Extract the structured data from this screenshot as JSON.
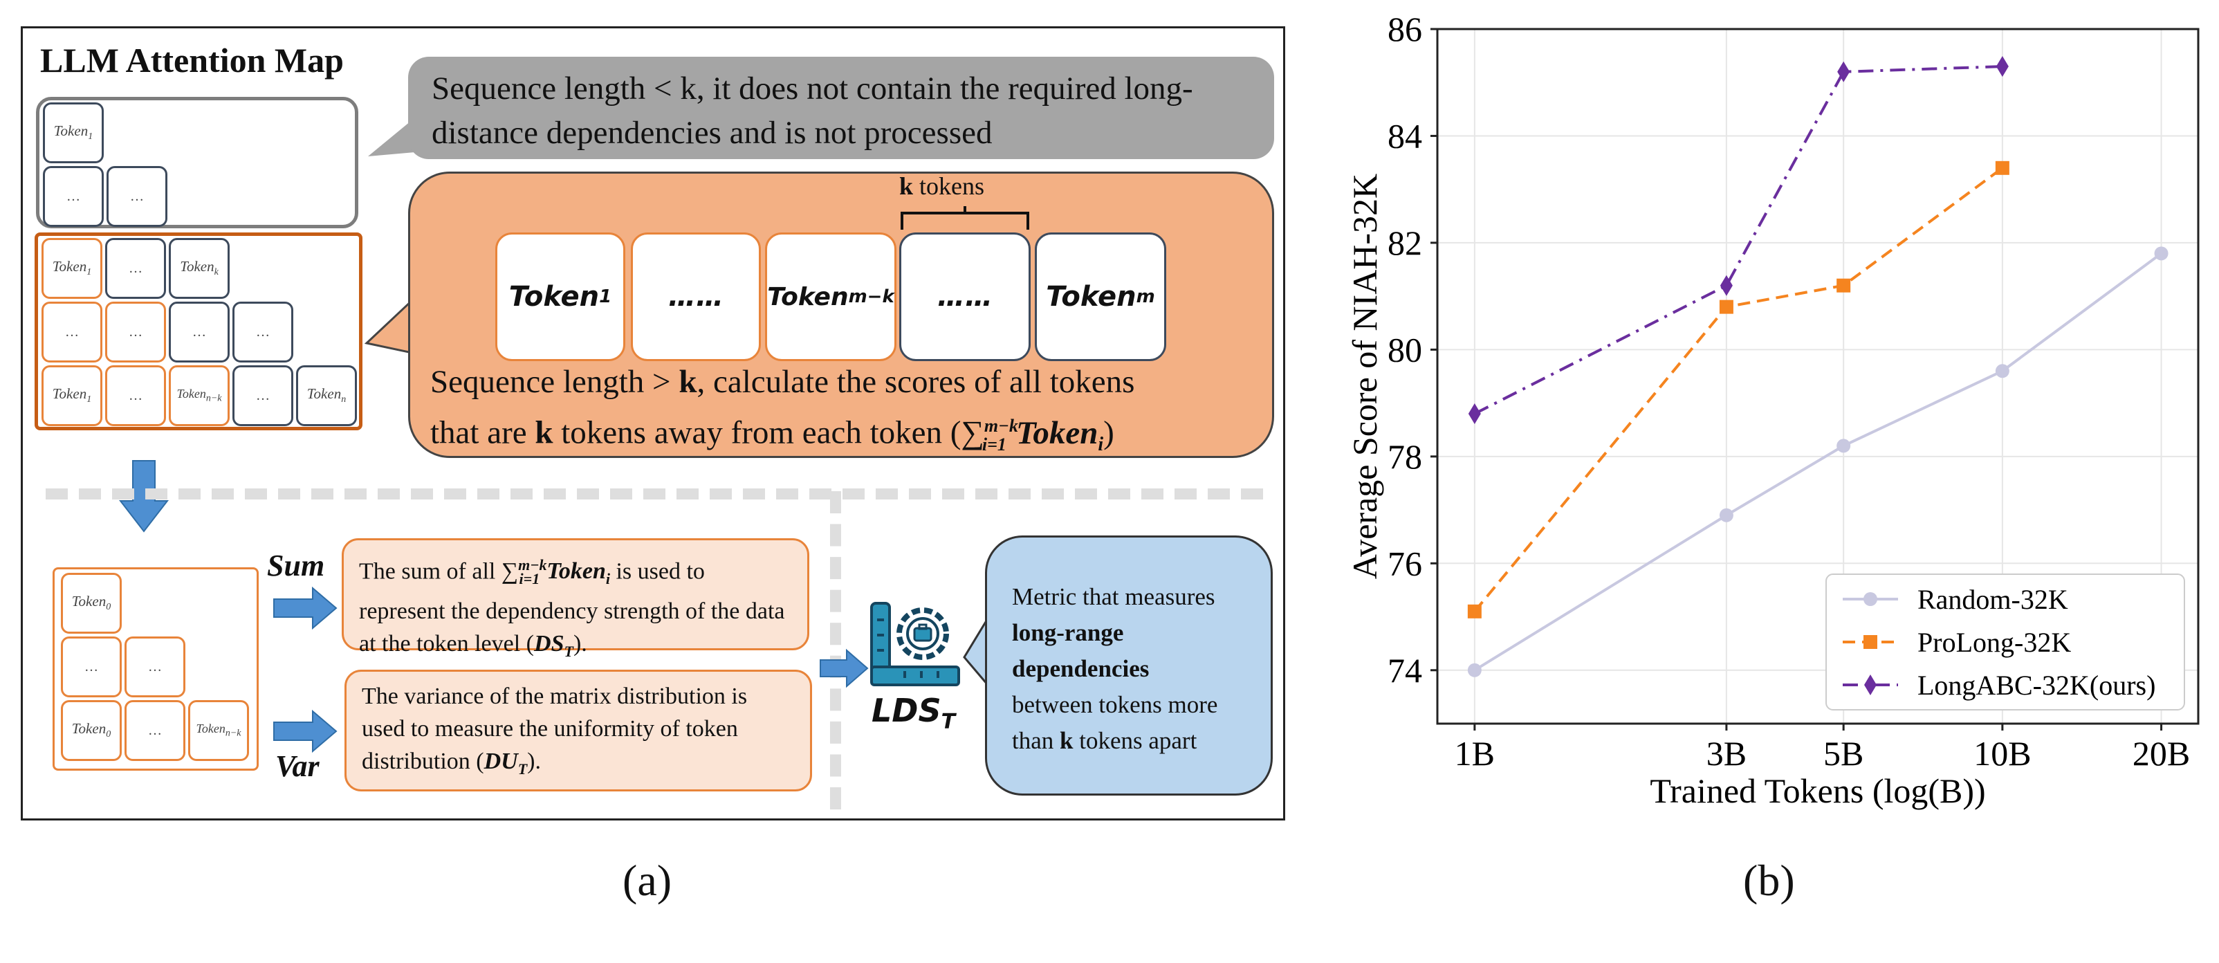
{
  "panel_a": {
    "title": "LLM Attention Map",
    "gray_note": "Sequence length < k, it does not contain the required long-distance dependencies and is not processed",
    "k_tokens": {
      "k": "k",
      "rest": " tokens"
    },
    "seq_tokens": {
      "t1": "Token",
      "t1_sub": "1",
      "dots": "……",
      "tmk": "Token",
      "tmk_sub": "m−k",
      "tm": "Token",
      "tm_sub": "m"
    },
    "orange_note": {
      "l1_a": "Sequence length > ",
      "l1_b": "k",
      "l1_c": ", calculate the scores of all tokens",
      "l2_a": "that are ",
      "l2_b": "k",
      "l2_c": " tokens away from each token (",
      "l2_sum": "∑",
      "l2_sup": "m−k",
      "l2_subi": "i=1",
      "l2_tok": "Token",
      "l2_toki": "i",
      "l2_end": ")"
    },
    "matrix_small": {
      "token": "Token",
      "s1": "1",
      "sk": "k",
      "sn": "n",
      "snk": "n−k",
      "s0": "0",
      "dots": "…"
    },
    "sum_label": "Sum",
    "var_label": "Var",
    "sum_text": {
      "a": "The sum of all ",
      "sum": "∑",
      "sup": "m−k",
      "sub": "i=1",
      "tok": "Token",
      "toki": "i",
      "b": " is used to represent the dependency strength of the data at the token level (",
      "ds": "DS",
      "dss": "T",
      "c": ")."
    },
    "var_text": {
      "a": "The variance of the matrix distribution is used to measure the uniformity of token distribution (",
      "du": "DU",
      "dus": "T",
      "c": ")."
    },
    "lds": {
      "main": "LDS",
      "sub": "T"
    },
    "blue_note": {
      "l1": "Metric that measures",
      "l2": "long-range",
      "l3": "dependencies",
      "l4": "between tokens more",
      "l5a": "than ",
      "l5b": "k",
      "l5c": " tokens apart"
    },
    "caption": "(a)"
  },
  "panel_b": {
    "caption": "(b)",
    "colors": {
      "random": "#c8c8e0",
      "prolong": "#f5841f",
      "longabc": "#6a2e9e"
    }
  },
  "chart_data": {
    "type": "line",
    "title": "",
    "xlabel": "Trained Tokens (log(B))",
    "ylabel": "Average  Score  of  NIAH-32K",
    "xscale": "log",
    "x_ticks": [
      "1B",
      "3B",
      "5B",
      "10B",
      "20B"
    ],
    "x_tick_values": [
      1,
      3,
      5,
      10,
      20
    ],
    "y_ticks": [
      "74",
      "76",
      "78",
      "80",
      "82",
      "84",
      "86"
    ],
    "ylim": [
      73,
      86
    ],
    "grid": true,
    "legend_position": "bottom-right",
    "series": [
      {
        "name": "Random-32K",
        "x": [
          1,
          3,
          5,
          10,
          20
        ],
        "values": [
          74.0,
          76.9,
          78.2,
          79.6,
          81.8
        ],
        "style": "solid",
        "marker": "circle"
      },
      {
        "name": "ProLong-32K",
        "x": [
          1,
          3,
          5,
          10
        ],
        "values": [
          75.1,
          80.8,
          81.2,
          83.4
        ],
        "style": "dashed",
        "marker": "square"
      },
      {
        "name": "LongABC-32K(ours)",
        "x": [
          1,
          3,
          5,
          10
        ],
        "values": [
          78.8,
          81.2,
          85.2,
          85.3
        ],
        "style": "dashdot",
        "marker": "diamond"
      }
    ]
  }
}
